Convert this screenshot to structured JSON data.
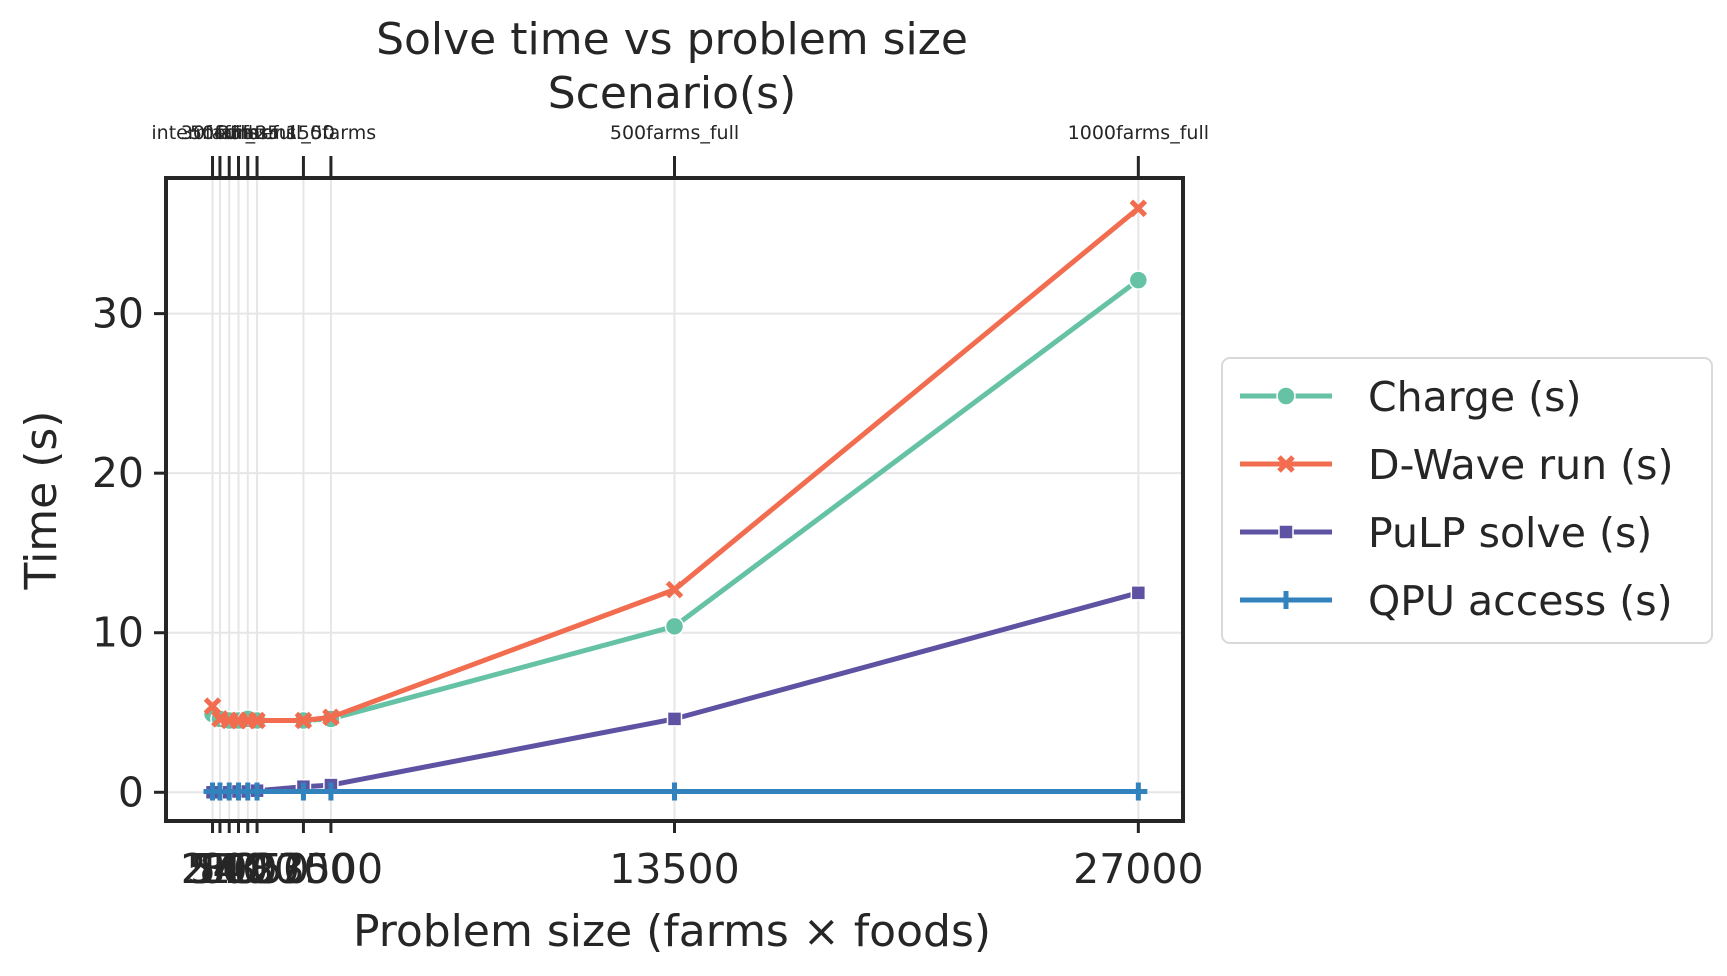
{
  "chart_data": {
    "type": "line",
    "title": "Solve time vs problem size",
    "top_axis_label": "Scenario(s)",
    "xlabel": "Problem size (farms × foods)",
    "ylabel": "Time (s)",
    "x": [
      54,
      270,
      540,
      810,
      1080,
      1350,
      2700,
      3500,
      13500,
      27000
    ],
    "xticks": [
      54,
      270,
      540,
      810,
      1080,
      1350,
      2700,
      3500,
      13500,
      27000
    ],
    "xtick_labels": [
      "54",
      "270",
      "540",
      "810",
      "1080",
      "1350",
      "2700",
      "3500",
      "13500",
      "27000"
    ],
    "top_tick_labels": [
      "intermediate",
      "30farms",
      "50farms",
      "full",
      "full_25",
      "25farms",
      "full_50",
      "150farms",
      "500farms_full",
      "1000farms_full"
    ],
    "xlim": [
      -1300,
      28300
    ],
    "yticks": [
      0,
      10,
      20,
      30
    ],
    "ylim": [
      -1.8,
      38.5
    ],
    "grid": true,
    "legend_position": "right",
    "series": [
      {
        "name": "Charge (s)",
        "color": "#66c2a5",
        "marker": "circle",
        "values": [
          4.9,
          4.6,
          4.5,
          4.5,
          4.6,
          4.5,
          4.5,
          4.6,
          10.4,
          32.1
        ]
      },
      {
        "name": "D-Wave run (s)",
        "color": "#f26c4f",
        "marker": "x",
        "values": [
          5.4,
          4.6,
          4.5,
          4.5,
          4.5,
          4.5,
          4.5,
          4.7,
          12.7,
          36.6
        ]
      },
      {
        "name": "PuLP solve (s)",
        "color": "#5e52a3",
        "marker": "square",
        "values": [
          0.0,
          0.0,
          0.0,
          0.05,
          0.05,
          0.1,
          0.35,
          0.45,
          4.6,
          12.5
        ]
      },
      {
        "name": "QPU access (s)",
        "color": "#3282bd",
        "marker": "plus",
        "values": [
          0.05,
          0.05,
          0.05,
          0.05,
          0.05,
          0.05,
          0.05,
          0.05,
          0.05,
          0.05
        ]
      }
    ]
  }
}
